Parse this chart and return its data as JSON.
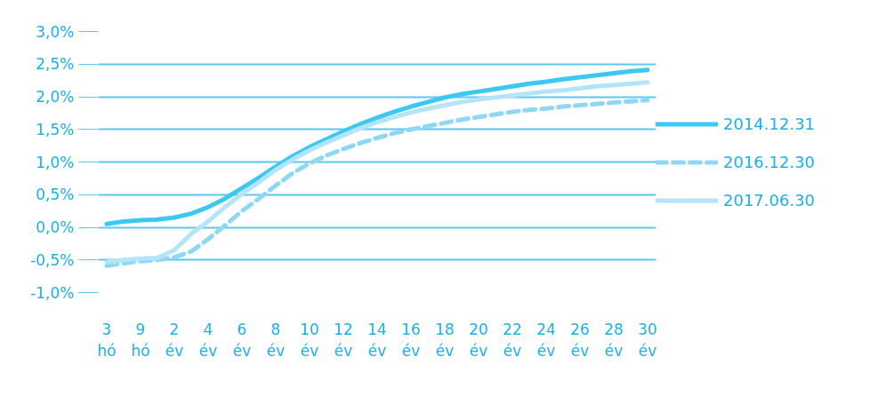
{
  "chart_data": {
    "type": "line",
    "categories": [
      "3\nhó",
      null,
      "9\nhó",
      null,
      "2\név",
      null,
      "4\név",
      null,
      "6\név",
      null,
      "8\név",
      null,
      "10\név",
      null,
      "12\név",
      null,
      "14\név",
      null,
      "16\név",
      null,
      "18\név",
      null,
      "20\név",
      null,
      "22\név",
      null,
      "24\név",
      null,
      "26\név",
      null,
      "28\név",
      null,
      "30\név"
    ],
    "series": [
      {
        "name": "2014.12.31",
        "color": "#3cc8f0",
        "line_style": "solid",
        "values": [
          0.05,
          0.09,
          0.11,
          0.12,
          0.15,
          0.21,
          0.31,
          0.44,
          0.6,
          0.76,
          0.93,
          1.09,
          1.23,
          1.35,
          1.47,
          1.58,
          1.68,
          1.77,
          1.85,
          1.92,
          1.99,
          2.04,
          2.08,
          2.12,
          2.16,
          2.2,
          2.23,
          2.27,
          2.3,
          2.33,
          2.36,
          2.39,
          2.41
        ]
      },
      {
        "name": "2016.12.30",
        "color": "#8fd8f4",
        "line_style": "dashed",
        "values": [
          -0.59,
          -0.55,
          -0.52,
          -0.5,
          -0.46,
          -0.37,
          -0.18,
          0.03,
          0.25,
          0.44,
          0.64,
          0.83,
          0.98,
          1.1,
          1.2,
          1.29,
          1.37,
          1.44,
          1.5,
          1.55,
          1.6,
          1.65,
          1.69,
          1.73,
          1.77,
          1.8,
          1.82,
          1.85,
          1.87,
          1.89,
          1.91,
          1.93,
          1.95
        ]
      },
      {
        "name": "2017.06.30",
        "color": "#b4e4f8",
        "line_style": "solid",
        "values": [
          -0.53,
          -0.5,
          -0.48,
          -0.47,
          -0.35,
          -0.1,
          0.09,
          0.31,
          0.51,
          0.69,
          0.88,
          1.04,
          1.18,
          1.3,
          1.41,
          1.52,
          1.61,
          1.69,
          1.76,
          1.82,
          1.87,
          1.92,
          1.96,
          1.99,
          2.02,
          2.05,
          2.08,
          2.1,
          2.13,
          2.16,
          2.18,
          2.2,
          2.22
        ]
      }
    ],
    "ylim": [
      -1,
      3
    ],
    "yticks": [
      {
        "value": -1,
        "label": "-1,0%"
      },
      {
        "value": -0.5,
        "label": "-0,5%"
      },
      {
        "value": 0,
        "label": "0,0%"
      },
      {
        "value": 0.5,
        "label": "0,5%"
      },
      {
        "value": 1,
        "label": "1,0%"
      },
      {
        "value": 1.5,
        "label": "1,5%"
      },
      {
        "value": 2,
        "label": "2,0%"
      },
      {
        "value": 2.5,
        "label": "2,5%"
      },
      {
        "value": 3,
        "label": "3,0%"
      }
    ],
    "grid": "y",
    "legend": "right",
    "marker": "none"
  }
}
